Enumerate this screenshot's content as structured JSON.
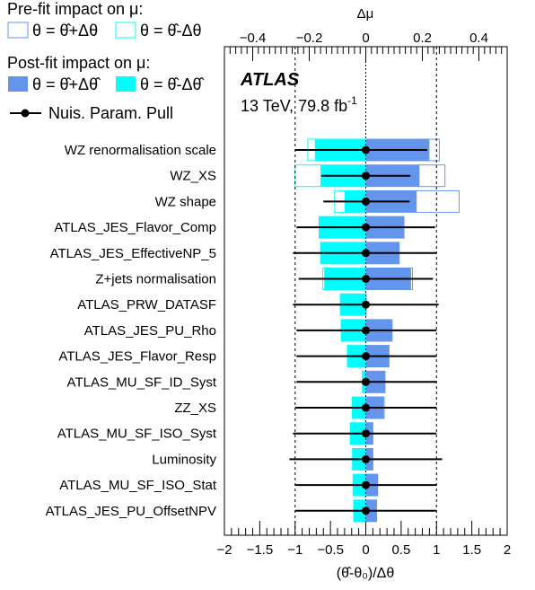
{
  "chart_data": {
    "type": "ranking",
    "legend": {
      "prefit_title": "Pre-fit impact on μ:",
      "prefit_up": "θ = θ̂+Δθ",
      "prefit_down": "θ = θ̂-Δθ",
      "postfit_title": "Post-fit impact on μ:",
      "postfit_up": "θ = θ̂+Δθ̂",
      "postfit_down": "θ = θ̂-Δθ̂",
      "pull": "Nuis. Param. Pull"
    },
    "atlas_label": "ATLAS",
    "energy_label": "13 TeV, 79.8 fb",
    "energy_sup": "-1",
    "top_axis": {
      "label": "Δμ",
      "range": [
        -0.5,
        0.5
      ],
      "ticks": [
        -0.4,
        -0.2,
        0,
        0.2,
        0.4
      ],
      "tick_labels": [
        "−0.4",
        "−0.2",
        "0",
        "0.2",
        "0.4"
      ]
    },
    "bottom_axis": {
      "label": "(θ̂-θ₀)/Δθ",
      "range": [
        -2,
        2
      ],
      "ticks": [
        -2,
        -1.5,
        -1,
        -0.5,
        0,
        0.5,
        1,
        1.5,
        2
      ],
      "tick_labels": [
        "−2",
        "−1.5",
        "−1",
        "−0.5",
        "0",
        "0.5",
        "1",
        "1.5",
        "2"
      ]
    },
    "reference_lines": [
      -1,
      0,
      1
    ],
    "colors": {
      "postfit_up": "#6495ed",
      "postfit_down": "#00ffff",
      "prefit_up": "#6495ed",
      "prefit_down": "#00ffff",
      "pull": "#000000"
    },
    "parameters": [
      {
        "name": "WZ renormalisation scale",
        "prefit_up": 0.26,
        "prefit_down": -0.205,
        "postfit_up": 0.225,
        "postfit_down": -0.18,
        "pull": 0.0,
        "pull_lo": -1.0,
        "pull_hi": 0.87
      },
      {
        "name": "WZ_XS",
        "prefit_up": 0.28,
        "prefit_down": -0.25,
        "postfit_up": 0.19,
        "postfit_down": -0.16,
        "pull": 0.0,
        "pull_lo": -0.63,
        "pull_hi": 0.63
      },
      {
        "name": "WZ shape",
        "prefit_up": 0.33,
        "prefit_down": -0.11,
        "postfit_up": 0.18,
        "postfit_down": -0.075,
        "pull": 0.0,
        "pull_lo": -0.6,
        "pull_hi": 0.62
      },
      {
        "name": "ATLAS_JES_Flavor_Comp",
        "prefit_up": 0.135,
        "prefit_down": -0.165,
        "postfit_up": 0.135,
        "postfit_down": -0.165,
        "pull": 0.0,
        "pull_lo": -0.98,
        "pull_hi": 0.98
      },
      {
        "name": "ATLAS_JES_EffectiveNP_5",
        "prefit_up": 0.118,
        "prefit_down": -0.16,
        "postfit_up": 0.118,
        "postfit_down": -0.16,
        "pull": 0.0,
        "pull_lo": -1.03,
        "pull_hi": 1.0
      },
      {
        "name": "Z+jets normalisation",
        "prefit_up": 0.165,
        "prefit_down": -0.152,
        "postfit_up": 0.16,
        "postfit_down": -0.147,
        "pull": 0.0,
        "pull_lo": -0.95,
        "pull_hi": 0.95
      },
      {
        "name": "ATLAS_PRW_DATASF",
        "prefit_up": 0.0,
        "prefit_down": -0.09,
        "postfit_up": 0.0,
        "postfit_down": -0.09,
        "pull": 0.0,
        "pull_lo": -1.03,
        "pull_hi": 1.03
      },
      {
        "name": "ATLAS_JES_PU_Rho",
        "prefit_up": 0.093,
        "prefit_down": -0.087,
        "postfit_up": 0.093,
        "postfit_down": -0.087,
        "pull": 0.0,
        "pull_lo": -0.98,
        "pull_hi": 1.0
      },
      {
        "name": "ATLAS_JES_Flavor_Resp",
        "prefit_up": 0.082,
        "prefit_down": -0.065,
        "postfit_up": 0.082,
        "postfit_down": -0.065,
        "pull": 0.0,
        "pull_lo": -0.98,
        "pull_hi": 1.0
      },
      {
        "name": "ATLAS_MU_SF_ID_Syst",
        "prefit_up": 0.068,
        "prefit_down": -0.012,
        "postfit_up": 0.068,
        "postfit_down": -0.012,
        "pull": 0.0,
        "pull_lo": -0.98,
        "pull_hi": 1.0
      },
      {
        "name": "ZZ_XS",
        "prefit_up": 0.065,
        "prefit_down": -0.048,
        "postfit_up": 0.063,
        "postfit_down": -0.048,
        "pull": 0.0,
        "pull_lo": -1.0,
        "pull_hi": 1.0
      },
      {
        "name": "ATLAS_MU_SF_ISO_Syst",
        "prefit_up": 0.025,
        "prefit_down": -0.055,
        "postfit_up": 0.025,
        "postfit_down": -0.055,
        "pull": 0.0,
        "pull_lo": -1.03,
        "pull_hi": 1.0
      },
      {
        "name": "Luminosity",
        "prefit_up": 0.025,
        "prefit_down": -0.047,
        "postfit_up": 0.025,
        "postfit_down": -0.047,
        "pull": 0.0,
        "pull_lo": -1.08,
        "pull_hi": 1.08
      },
      {
        "name": "ATLAS_MU_SF_ISO_Stat",
        "prefit_up": 0.042,
        "prefit_down": -0.045,
        "postfit_up": 0.042,
        "postfit_down": -0.045,
        "pull": 0.0,
        "pull_lo": -1.0,
        "pull_hi": 1.0
      },
      {
        "name": "ATLAS_JES_PU_OffsetNPV",
        "prefit_up": 0.038,
        "prefit_down": -0.043,
        "postfit_up": 0.038,
        "postfit_down": -0.043,
        "pull": 0.0,
        "pull_lo": -1.0,
        "pull_hi": 1.0
      }
    ]
  }
}
